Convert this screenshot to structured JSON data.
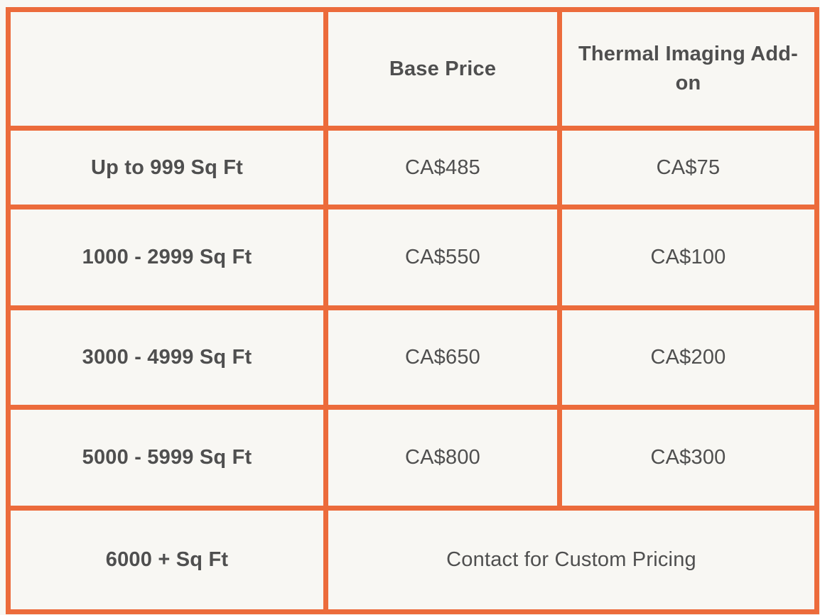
{
  "colors": {
    "border": "#EC6B3B",
    "background": "#F8F7F3",
    "text": "#4F4F4F"
  },
  "table": {
    "headers": {
      "blank": "",
      "base_price": "Base Price",
      "thermal_addon": "Thermal Imaging Add-on"
    },
    "rows": [
      {
        "label": "Up to 999 Sq Ft",
        "base_price": "CA$485",
        "thermal_addon": "CA$75"
      },
      {
        "label": "1000 - 2999 Sq Ft",
        "base_price": "CA$550",
        "thermal_addon": "CA$100"
      },
      {
        "label": "3000 - 4999 Sq Ft",
        "base_price": "CA$650",
        "thermal_addon": "CA$200"
      },
      {
        "label": "5000 - 5999 Sq Ft",
        "base_price": "CA$800",
        "thermal_addon": "CA$300"
      },
      {
        "label": "6000 + Sq Ft",
        "merged": "Contact for Custom Pricing"
      }
    ]
  }
}
